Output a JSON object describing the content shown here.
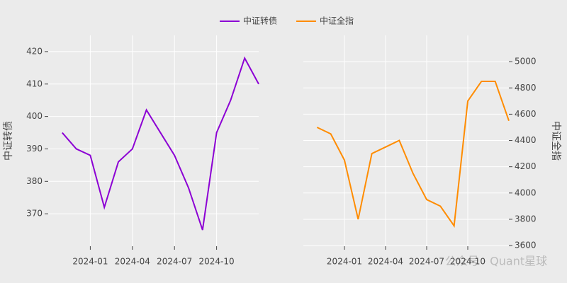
{
  "chart_data": [
    {
      "type": "line",
      "y_title": "中证转债",
      "x": [
        "2023-11",
        "2023-12",
        "2024-01",
        "2024-02",
        "2024-03",
        "2024-04",
        "2024-05",
        "2024-06",
        "2024-07",
        "2024-08",
        "2024-09",
        "2024-10",
        "2024-11",
        "2024-12",
        "2025-01"
      ],
      "series": [
        {
          "name": "中证转债",
          "color": "#8c00d4",
          "values": [
            395,
            390,
            388,
            372,
            386,
            390,
            402,
            395,
            388,
            378,
            365,
            395,
            405,
            418,
            410
          ]
        }
      ],
      "xlim": [
        "2023-10",
        "2025-01"
      ],
      "xticks": [
        "2024-01",
        "2024-04",
        "2024-07",
        "2024-10"
      ],
      "ylim": [
        360,
        425
      ],
      "yticks": [
        370,
        380,
        390,
        400,
        410,
        420
      ],
      "y_side": "left",
      "grid": true
    },
    {
      "type": "line",
      "y_title": "中证全指",
      "x": [
        "2023-11",
        "2023-12",
        "2024-01",
        "2024-02",
        "2024-03",
        "2024-04",
        "2024-05",
        "2024-06",
        "2024-07",
        "2024-08",
        "2024-09",
        "2024-10",
        "2024-11",
        "2024-12",
        "2025-01"
      ],
      "series": [
        {
          "name": "中证全指",
          "color": "#ff8c00",
          "values": [
            4500,
            4450,
            4250,
            3800,
            4300,
            4350,
            4400,
            4150,
            3950,
            3900,
            3750,
            4700,
            4850,
            4850,
            4550
          ]
        }
      ],
      "xlim": [
        "2023-10",
        "2025-01"
      ],
      "xticks": [
        "2024-01",
        "2024-04",
        "2024-07",
        "2024-10"
      ],
      "ylim": [
        3595,
        5200
      ],
      "yticks": [
        3600,
        3800,
        4000,
        4200,
        4400,
        4600,
        4800,
        5000
      ],
      "y_side": "right",
      "grid": true
    }
  ],
  "watermark": "公众号 · Quant星球"
}
